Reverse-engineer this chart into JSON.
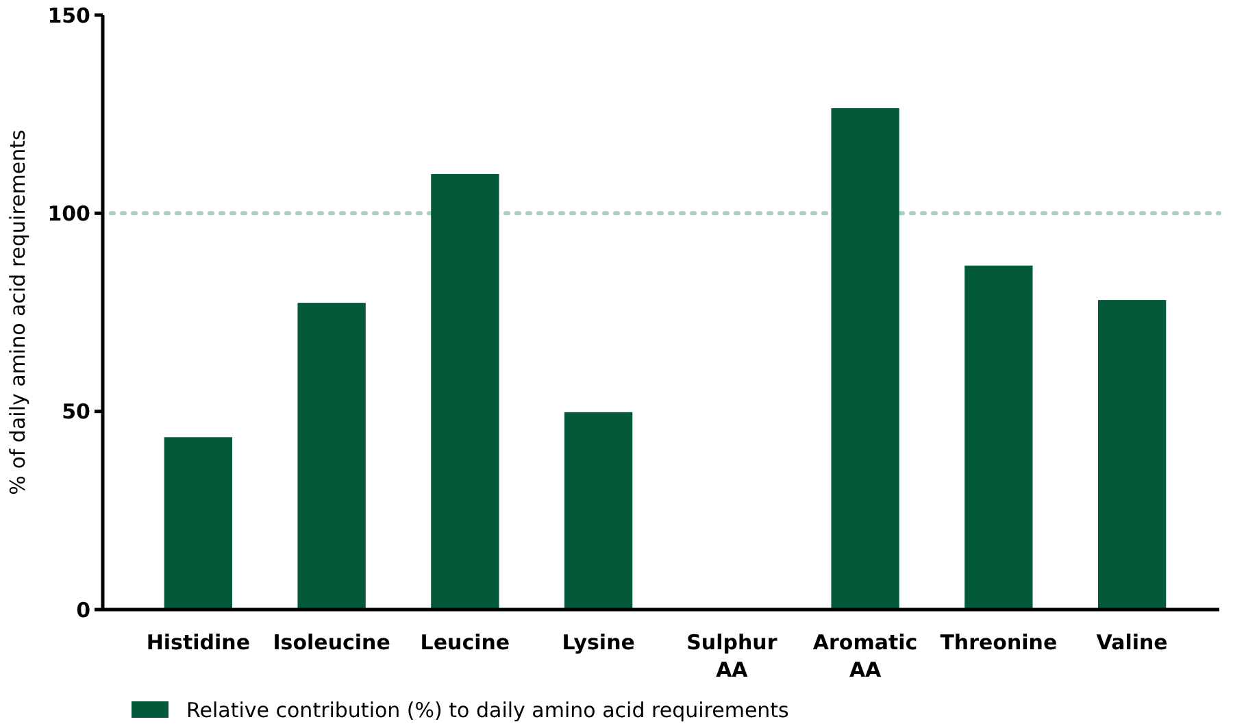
{
  "chart_data": {
    "type": "bar",
    "ylabel": "% of daily amino acid requirements",
    "categories": [
      "Histidine",
      "Isoleucine",
      "Leucine",
      "Lysine",
      "Sulphur AA",
      "Aromatic AA",
      "Threonine",
      "Valine"
    ],
    "series": [
      {
        "name": "Relative contribution (%) to daily amino acid requirements",
        "color": "#045a38",
        "values": [
          43.5,
          77.4,
          109.9,
          49.8,
          0,
          126.5,
          86.8,
          78.1
        ]
      }
    ],
    "ylim": [
      0,
      150
    ],
    "yticks": [
      0,
      50,
      100,
      150
    ],
    "grid": false,
    "legend": "bottom left",
    "ref_lines": [
      {
        "axis": "y",
        "value": 100,
        "color": "#a8cfc0",
        "line_style": "dotted"
      }
    ]
  }
}
